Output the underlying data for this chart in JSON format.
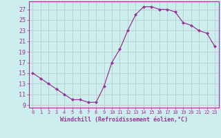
{
  "x": [
    0,
    1,
    2,
    3,
    4,
    5,
    6,
    7,
    8,
    9,
    10,
    11,
    12,
    13,
    14,
    15,
    16,
    17,
    18,
    19,
    20,
    21,
    22,
    23
  ],
  "y": [
    15,
    14,
    13,
    12,
    11,
    10,
    10,
    9.5,
    9.5,
    12.5,
    17,
    19.5,
    23,
    26,
    27.5,
    27.5,
    27,
    27,
    26.5,
    24.5,
    24,
    23,
    22.5,
    20
  ],
  "line_color": "#993399",
  "marker_color": "#993399",
  "bg_color": "#cceeee",
  "grid_color": "#bbcccc",
  "xlabel": "Windchill (Refroidissement éolien,°C)",
  "ylabel_ticks": [
    9,
    11,
    13,
    15,
    17,
    19,
    21,
    23,
    25,
    27
  ],
  "xtick_labels": [
    "0",
    "1",
    "2",
    "3",
    "4",
    "5",
    "6",
    "7",
    "8",
    "9",
    "10",
    "11",
    "12",
    "13",
    "14",
    "15",
    "16",
    "17",
    "18",
    "19",
    "20",
    "21",
    "22",
    "23"
  ],
  "ylim": [
    8.5,
    28.5
  ],
  "xlim": [
    -0.5,
    23.5
  ],
  "tick_color": "#993399",
  "label_color": "#993399",
  "spine_color": "#993399"
}
